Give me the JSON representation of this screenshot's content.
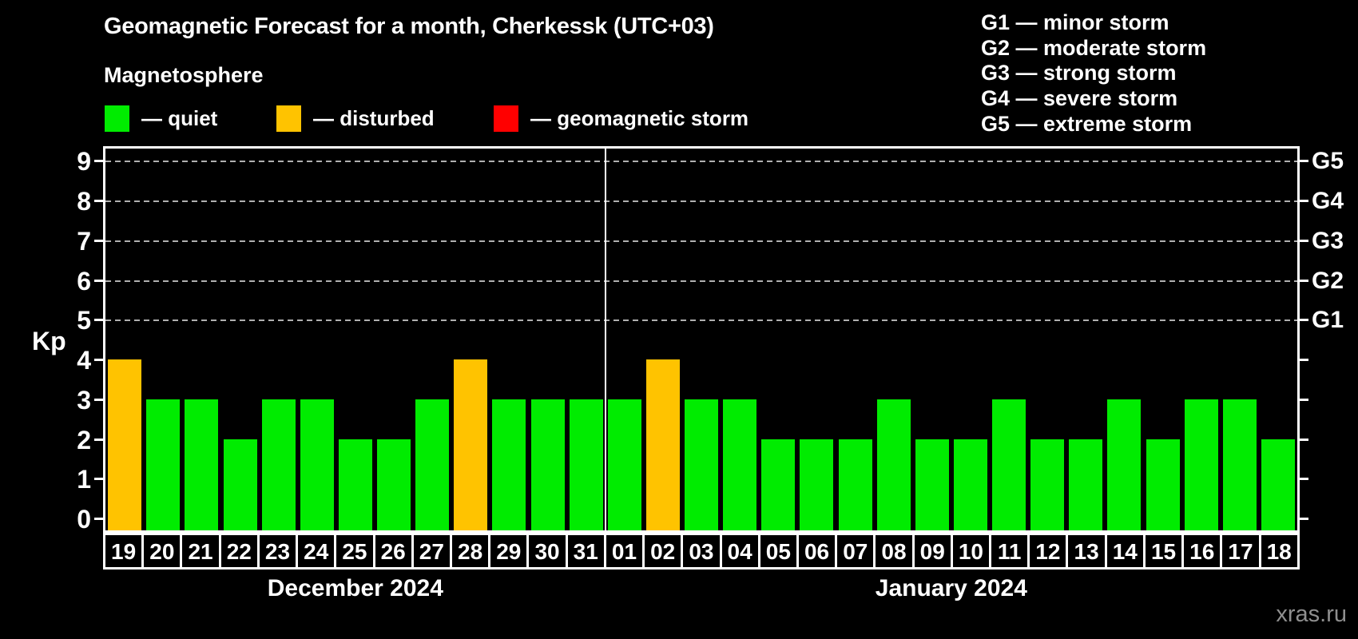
{
  "header": {
    "title": "Geomagnetic Forecast for a month, Cherkessk (UTC+03)",
    "subtitle": "Magnetosphere"
  },
  "status_legend": [
    {
      "key": "quiet",
      "label": "— quiet",
      "color": "#00ec00"
    },
    {
      "key": "disturbed",
      "label": "— disturbed",
      "color": "#ffc300"
    },
    {
      "key": "storm",
      "label": "— geomagnetic storm",
      "color": "#ff0000"
    }
  ],
  "g_scale_legend": [
    "G1 — minor storm",
    "G2 — moderate storm",
    "G3 — strong storm",
    "G4 — severe storm",
    "G5 — extreme storm"
  ],
  "watermark": "xras.ru",
  "chart_data": {
    "type": "bar",
    "ylabel": "Kp",
    "ylim": [
      0,
      9
    ],
    "yticks": [
      0,
      1,
      2,
      3,
      4,
      5,
      6,
      7,
      8,
      9
    ],
    "gridlines": {
      "at": [
        5,
        6,
        7,
        8,
        9
      ],
      "style": "dashed",
      "color": "#b0b0b0"
    },
    "right_axis": [
      {
        "value": 5,
        "label": "G1"
      },
      {
        "value": 6,
        "label": "G2"
      },
      {
        "value": 7,
        "label": "G3"
      },
      {
        "value": 8,
        "label": "G4"
      },
      {
        "value": 9,
        "label": "G5"
      }
    ],
    "colors": {
      "quiet": "#00ec00",
      "disturbed": "#ffc300",
      "storm": "#ff0000"
    },
    "groups": [
      {
        "label": "December 2024",
        "days": [
          {
            "d": "19",
            "kp": 4,
            "status": "disturbed"
          },
          {
            "d": "20",
            "kp": 3,
            "status": "quiet"
          },
          {
            "d": "21",
            "kp": 3,
            "status": "quiet"
          },
          {
            "d": "22",
            "kp": 2,
            "status": "quiet"
          },
          {
            "d": "23",
            "kp": 3,
            "status": "quiet"
          },
          {
            "d": "24",
            "kp": 3,
            "status": "quiet"
          },
          {
            "d": "25",
            "kp": 2,
            "status": "quiet"
          },
          {
            "d": "26",
            "kp": 2,
            "status": "quiet"
          },
          {
            "d": "27",
            "kp": 3,
            "status": "quiet"
          },
          {
            "d": "28",
            "kp": 4,
            "status": "disturbed"
          },
          {
            "d": "29",
            "kp": 3,
            "status": "quiet"
          },
          {
            "d": "30",
            "kp": 3,
            "status": "quiet"
          },
          {
            "d": "31",
            "kp": 3,
            "status": "quiet"
          }
        ]
      },
      {
        "label": "January 2024",
        "days": [
          {
            "d": "01",
            "kp": 3,
            "status": "quiet"
          },
          {
            "d": "02",
            "kp": 4,
            "status": "disturbed"
          },
          {
            "d": "03",
            "kp": 3,
            "status": "quiet"
          },
          {
            "d": "04",
            "kp": 3,
            "status": "quiet"
          },
          {
            "d": "05",
            "kp": 2,
            "status": "quiet"
          },
          {
            "d": "06",
            "kp": 2,
            "status": "quiet"
          },
          {
            "d": "07",
            "kp": 2,
            "status": "quiet"
          },
          {
            "d": "08",
            "kp": 3,
            "status": "quiet"
          },
          {
            "d": "09",
            "kp": 2,
            "status": "quiet"
          },
          {
            "d": "10",
            "kp": 2,
            "status": "quiet"
          },
          {
            "d": "11",
            "kp": 3,
            "status": "quiet"
          },
          {
            "d": "12",
            "kp": 2,
            "status": "quiet"
          },
          {
            "d": "13",
            "kp": 2,
            "status": "quiet"
          },
          {
            "d": "14",
            "kp": 3,
            "status": "quiet"
          },
          {
            "d": "15",
            "kp": 2,
            "status": "quiet"
          },
          {
            "d": "16",
            "kp": 3,
            "status": "quiet"
          },
          {
            "d": "17",
            "kp": 3,
            "status": "quiet"
          },
          {
            "d": "18",
            "kp": 2,
            "status": "quiet"
          }
        ]
      }
    ]
  }
}
